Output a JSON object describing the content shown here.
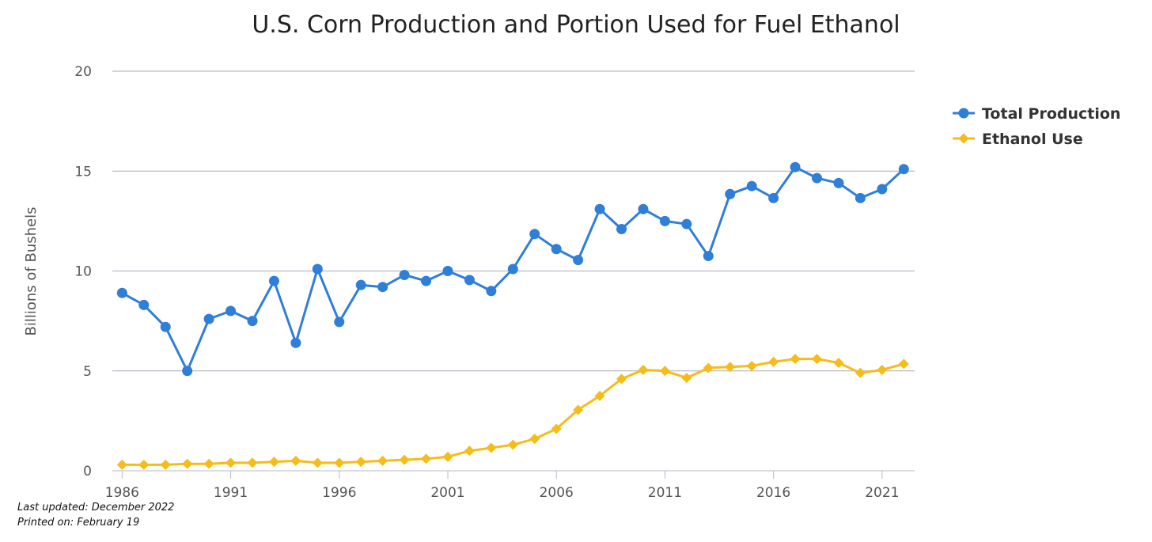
{
  "chart_data": {
    "type": "line",
    "title": "U.S. Corn Production and Portion Used for Fuel Ethanol",
    "ylabel": "Billions of Bushels",
    "xlabel": "",
    "ylim": [
      0,
      20
    ],
    "y_ticks": [
      "0",
      "5",
      "10",
      "15",
      "20"
    ],
    "x_ticks": [
      "1986",
      "1991",
      "1996",
      "2001",
      "2006",
      "2011",
      "2016",
      "2021"
    ],
    "x": [
      1986,
      1987,
      1988,
      1989,
      1990,
      1991,
      1992,
      1993,
      1994,
      1995,
      1996,
      1997,
      1998,
      1999,
      2000,
      2001,
      2002,
      2003,
      2004,
      2005,
      2006,
      2007,
      2008,
      2009,
      2010,
      2011,
      2012,
      2013,
      2014,
      2015,
      2016,
      2017,
      2018,
      2019,
      2020,
      2021,
      2022
    ],
    "series": [
      {
        "name": "Total Production",
        "color": "#2f7ed8",
        "marker": "circle",
        "values": [
          8.9,
          8.3,
          7.2,
          5.0,
          7.6,
          8.0,
          7.5,
          9.5,
          6.4,
          10.1,
          7.45,
          9.3,
          9.2,
          9.8,
          9.5,
          10.0,
          9.55,
          9.0,
          10.1,
          11.85,
          11.1,
          10.55,
          13.1,
          12.1,
          13.1,
          12.5,
          12.35,
          10.75,
          13.85,
          14.25,
          13.65,
          15.2,
          14.65,
          14.4,
          13.65,
          14.1,
          15.1
        ]
      },
      {
        "name": "Ethanol Use",
        "color": "#f5bc1a",
        "marker": "diamond",
        "values": [
          0.3,
          0.3,
          0.3,
          0.35,
          0.35,
          0.4,
          0.4,
          0.45,
          0.5,
          0.4,
          0.4,
          0.45,
          0.5,
          0.55,
          0.6,
          0.7,
          1.0,
          1.15,
          1.3,
          1.6,
          2.1,
          3.05,
          3.75,
          4.6,
          5.05,
          5.0,
          4.65,
          5.15,
          5.2,
          5.25,
          5.45,
          5.6,
          5.6,
          5.4,
          4.9,
          5.05,
          5.35
        ]
      }
    ],
    "grid": true,
    "legend_position": "right"
  },
  "footer": {
    "last_updated": "Last updated: December 2022",
    "printed_on": "Printed on: February 19"
  }
}
